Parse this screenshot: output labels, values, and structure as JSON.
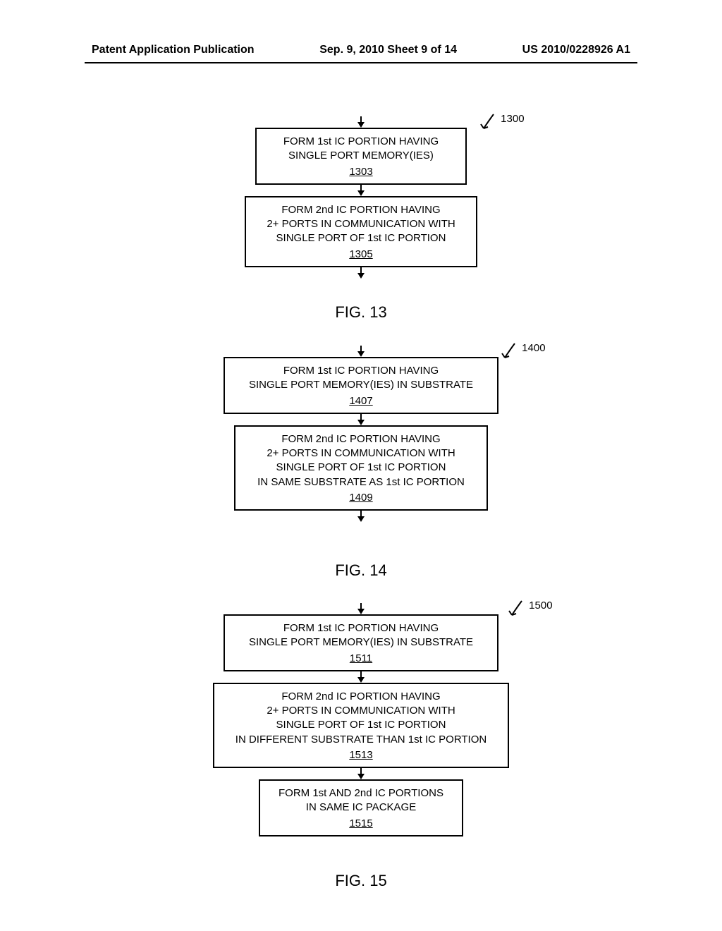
{
  "header": {
    "left": "Patent Application Publication",
    "center": "Sep. 9, 2010  Sheet 9 of 14",
    "right": "US 2010/0228926 A1"
  },
  "fig13": {
    "ref": "1300",
    "box1": {
      "text": "FORM 1st IC PORTION HAVING\nSINGLE PORT MEMORY(IES)",
      "num": "1303"
    },
    "box2": {
      "text": "FORM 2nd IC PORTION HAVING\n2+ PORTS IN COMMUNICATION WITH\nSINGLE PORT OF 1st IC PORTION",
      "num": "1305"
    },
    "caption": "FIG. 13"
  },
  "fig14": {
    "ref": "1400",
    "box1": {
      "text": "FORM 1st IC PORTION HAVING\nSINGLE PORT MEMORY(IES) IN SUBSTRATE",
      "num": "1407"
    },
    "box2": {
      "text": "FORM 2nd IC PORTION HAVING\n2+ PORTS IN COMMUNICATION WITH\nSINGLE PORT OF 1st IC PORTION\nIN SAME SUBSTRATE AS 1st IC PORTION",
      "num": "1409"
    },
    "caption": "FIG. 14"
  },
  "fig15": {
    "ref": "1500",
    "box1": {
      "text": "FORM 1st IC PORTION HAVING\nSINGLE PORT MEMORY(IES) IN SUBSTRATE",
      "num": "1511"
    },
    "box2": {
      "text": "FORM 2nd IC PORTION HAVING\n2+ PORTS IN COMMUNICATION WITH\nSINGLE PORT OF 1st IC PORTION\nIN DIFFERENT SUBSTRATE THAN 1st IC PORTION",
      "num": "1513"
    },
    "box3": {
      "text": "FORM 1st AND 2nd IC PORTIONS\nIN SAME IC PACKAGE",
      "num": "1515"
    },
    "caption": "FIG. 15"
  },
  "style": {
    "arrow_len": 14,
    "box_border_color": "#000000",
    "background": "#ffffff"
  }
}
